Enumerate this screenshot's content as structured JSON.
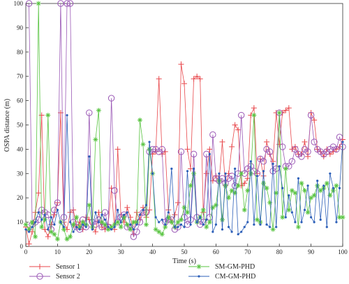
{
  "chart_data": {
    "type": "line",
    "title": "",
    "xlabel": "Time (s)",
    "ylabel": "OSPA distance (m)",
    "xlim": [
      0,
      100
    ],
    "ylim": [
      0,
      100
    ],
    "xticks": [
      0,
      10,
      20,
      30,
      40,
      50,
      60,
      70,
      80,
      90,
      100
    ],
    "yticks": [
      0,
      10,
      20,
      30,
      40,
      50,
      60,
      70,
      80,
      90,
      100
    ],
    "grid": false,
    "legend_position": "bottom",
    "series": [
      {
        "name": "Sensor 1",
        "color": "#e8474b",
        "marker": "plus",
        "x": [
          0,
          1,
          2,
          3,
          4,
          5,
          6,
          7,
          8,
          9,
          10,
          11,
          12,
          13,
          14,
          15,
          16,
          17,
          18,
          19,
          20,
          21,
          22,
          23,
          24,
          25,
          26,
          27,
          28,
          29,
          30,
          31,
          32,
          33,
          34,
          35,
          36,
          37,
          38,
          39,
          40,
          41,
          42,
          43,
          44,
          45,
          46,
          47,
          48,
          49,
          50,
          51,
          52,
          53,
          54,
          55,
          56,
          57,
          58,
          59,
          60,
          61,
          62,
          63,
          64,
          65,
          66,
          67,
          68,
          69,
          70,
          71,
          72,
          73,
          74,
          75,
          76,
          77,
          78,
          79,
          80,
          81,
          82,
          83,
          84,
          85,
          86,
          87,
          88,
          89,
          90,
          91,
          92,
          93,
          94,
          95,
          96,
          97,
          98,
          99,
          100
        ],
        "values": [
          8,
          1,
          6,
          14,
          22,
          54,
          7,
          4,
          9,
          13,
          18,
          55,
          10,
          7,
          14,
          15,
          8,
          10,
          7,
          12,
          11,
          8,
          6,
          14,
          8,
          7,
          9,
          24,
          7,
          40,
          13,
          10,
          16,
          12,
          5,
          14,
          11,
          16,
          12,
          15,
          38,
          39,
          69,
          38,
          39,
          15,
          10,
          13,
          18,
          75,
          67,
          40,
          32,
          69,
          70,
          69,
          14,
          30,
          40,
          27,
          29,
          27,
          43,
          25,
          30,
          41,
          50,
          48,
          25,
          26,
          28,
          54,
          57,
          30,
          36,
          29,
          43,
          38,
          35,
          55,
          42,
          55,
          56,
          57,
          40,
          41,
          38,
          38,
          43,
          37,
          55,
          52,
          40,
          39,
          37,
          40,
          38,
          39,
          40,
          41,
          44
        ]
      },
      {
        "name": "Sensor 2",
        "color": "#9b59b6",
        "marker": "circle",
        "x": [
          1,
          2,
          3,
          4,
          5,
          6,
          7,
          8,
          9,
          10,
          11,
          12,
          13,
          14,
          15,
          16,
          17,
          18,
          19,
          20,
          21,
          22,
          23,
          24,
          25,
          26,
          27,
          28,
          29,
          30,
          31,
          32,
          33,
          34,
          35,
          36,
          37,
          38,
          39,
          40,
          41,
          42,
          43,
          44,
          45,
          46,
          47,
          48,
          49,
          50,
          51,
          52,
          53,
          54,
          55,
          56,
          57,
          58,
          59,
          60,
          61,
          62,
          63,
          64,
          65,
          66,
          67,
          68,
          69,
          70,
          71,
          72,
          73,
          74,
          75,
          76,
          77,
          78,
          79,
          80,
          81,
          82,
          83,
          84,
          85,
          86,
          87,
          88,
          89,
          90,
          91,
          92,
          93,
          94,
          95,
          96,
          97,
          98,
          99,
          100
        ],
        "values": [
          100,
          9,
          10,
          11,
          15,
          14,
          13,
          7,
          15,
          18,
          100,
          12,
          100,
          100,
          10,
          8,
          7,
          11,
          8,
          55,
          10,
          9,
          11,
          8,
          14,
          8,
          61,
          23,
          10,
          12,
          13,
          8,
          8,
          4,
          6,
          10,
          14,
          14,
          39,
          40,
          40,
          39,
          40,
          10,
          11,
          11,
          7,
          8,
          39,
          12,
          9,
          11,
          38,
          12,
          9,
          10,
          38,
          12,
          46,
          28,
          27,
          28,
          26,
          28,
          29,
          25,
          30,
          54,
          30,
          32,
          33,
          31,
          30,
          36,
          35,
          40,
          39,
          31,
          32,
          55,
          41,
          33,
          33,
          35,
          40,
          38,
          37,
          40,
          39,
          54,
          43,
          40,
          39,
          38,
          39,
          40,
          41,
          40,
          45,
          41
        ]
      },
      {
        "name": "SM-GM-PHD",
        "color": "#59c442",
        "marker": "star",
        "x": [
          0,
          1,
          2,
          3,
          4,
          5,
          6,
          7,
          8,
          9,
          10,
          11,
          12,
          13,
          14,
          15,
          16,
          17,
          18,
          19,
          20,
          21,
          22,
          23,
          24,
          25,
          26,
          27,
          28,
          29,
          30,
          31,
          32,
          33,
          34,
          35,
          36,
          37,
          38,
          39,
          40,
          41,
          42,
          43,
          44,
          45,
          46,
          47,
          48,
          49,
          50,
          51,
          52,
          53,
          54,
          55,
          56,
          57,
          58,
          59,
          60,
          61,
          62,
          63,
          64,
          65,
          66,
          67,
          68,
          69,
          70,
          71,
          72,
          73,
          74,
          75,
          76,
          77,
          78,
          79,
          80,
          81,
          82,
          83,
          84,
          85,
          86,
          87,
          88,
          89,
          90,
          91,
          92,
          93,
          94,
          95,
          96,
          97,
          98,
          99,
          100
        ],
        "values": [
          9,
          7,
          10,
          4,
          100,
          8,
          11,
          54,
          6,
          5,
          3,
          10,
          7,
          3,
          4,
          9,
          12,
          8,
          10,
          9,
          17,
          8,
          44,
          56,
          10,
          9,
          7,
          8,
          9,
          10,
          8,
          12,
          9,
          7,
          10,
          10,
          52,
          42,
          9,
          40,
          30,
          7,
          6,
          5,
          8,
          12,
          10,
          8,
          10,
          11,
          16,
          14,
          25,
          30,
          10,
          12,
          15,
          8,
          10,
          16,
          17,
          27,
          11,
          25,
          20,
          23,
          22,
          25,
          30,
          15,
          23,
          30,
          54,
          11,
          10,
          26,
          24,
          18,
          7,
          22,
          55,
          12,
          32,
          15,
          23,
          22,
          8,
          26,
          23,
          14,
          20,
          21,
          25,
          23,
          24,
          26,
          21,
          23,
          25,
          12,
          12
        ]
      },
      {
        "name": "CM-GM-PHD",
        "color": "#2c5fb8",
        "marker": "dot",
        "x": [
          0,
          1,
          2,
          3,
          4,
          5,
          6,
          7,
          8,
          9,
          10,
          11,
          12,
          13,
          14,
          15,
          16,
          17,
          18,
          19,
          20,
          21,
          22,
          23,
          24,
          25,
          26,
          27,
          28,
          29,
          30,
          31,
          32,
          33,
          34,
          35,
          36,
          37,
          38,
          39,
          40,
          41,
          42,
          43,
          44,
          45,
          46,
          47,
          48,
          49,
          50,
          51,
          52,
          53,
          54,
          55,
          56,
          57,
          58,
          59,
          60,
          61,
          62,
          63,
          64,
          65,
          66,
          67,
          68,
          69,
          70,
          71,
          72,
          73,
          74,
          75,
          76,
          77,
          78,
          79,
          80,
          81,
          82,
          83,
          84,
          85,
          86,
          87,
          88,
          89,
          90,
          91,
          92,
          93,
          94,
          95,
          96,
          97,
          98,
          99,
          100
        ],
        "values": [
          7,
          6,
          8,
          10,
          14,
          11,
          13,
          7,
          12,
          9,
          15,
          10,
          8,
          54,
          10,
          6,
          8,
          7,
          9,
          8,
          37,
          7,
          14,
          10,
          13,
          11,
          8,
          7,
          8,
          15,
          10,
          13,
          14,
          9,
          7,
          9,
          13,
          15,
          17,
          43,
          30,
          12,
          10,
          11,
          9,
          14,
          32,
          8,
          8,
          9,
          8,
          31,
          9,
          32,
          10,
          12,
          9,
          11,
          38,
          6,
          9,
          30,
          7,
          30,
          8,
          6,
          32,
          5,
          6,
          8,
          10,
          35,
          9,
          29,
          9,
          31,
          9,
          8,
          34,
          8,
          33,
          24,
          12,
          21,
          14,
          10,
          28,
          10,
          15,
          25,
          12,
          10,
          27,
          11,
          25,
          8,
          30,
          24,
          10,
          24,
          43
        ]
      }
    ]
  }
}
